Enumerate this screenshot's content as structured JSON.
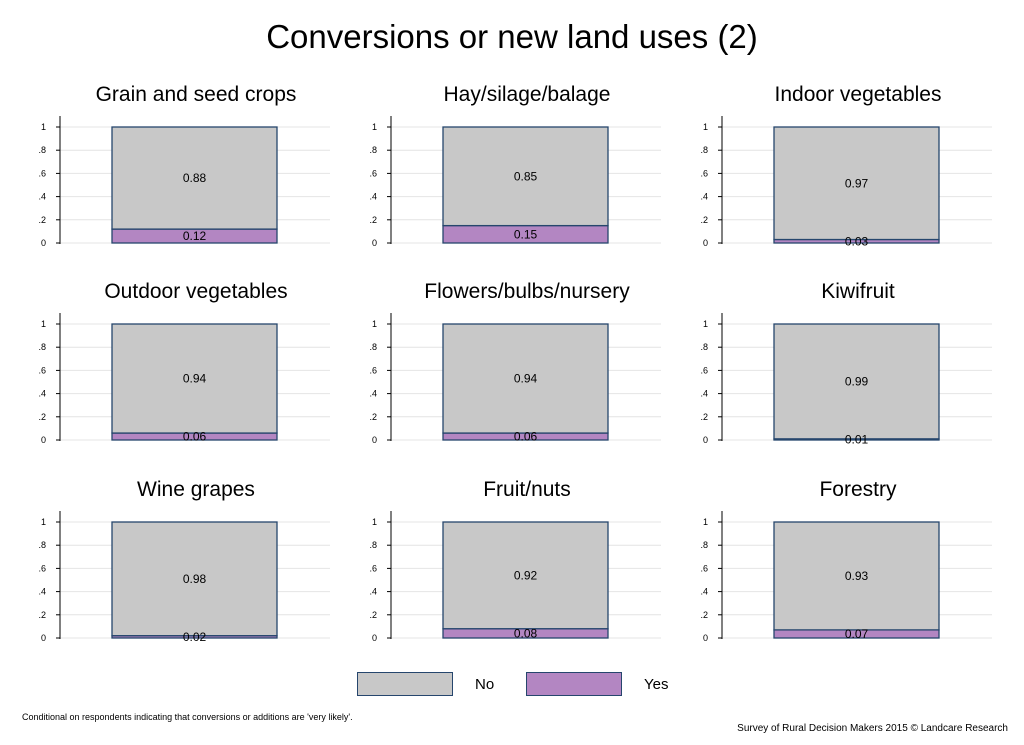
{
  "title": "Conversions or new land uses (2)",
  "colors": {
    "no": "#c8c8c8",
    "yes": "#b386c2",
    "edge": "#26466d",
    "grid": "#e4e4e4"
  },
  "legend": {
    "no_label": "No",
    "yes_label": "Yes"
  },
  "footnote": "Conditional on respondents indicating that conversions or additions are 'very likely'.",
  "credit": "Survey of Rural Decision Makers 2015 © Landcare Research",
  "chart_data": [
    {
      "type": "bar",
      "title": "Grain and seed crops",
      "series": [
        {
          "name": "No",
          "value": 0.88,
          "label": "0.88"
        },
        {
          "name": "Yes",
          "value": 0.12,
          "label": "0.12"
        }
      ],
      "ylim": [
        0,
        1
      ],
      "yticks": [
        "0",
        ".2",
        ".4",
        ".6",
        ".8",
        "1"
      ],
      "stacked": true,
      "grid": true
    },
    {
      "type": "bar",
      "title": "Hay/silage/balage",
      "series": [
        {
          "name": "No",
          "value": 0.85,
          "label": "0.85"
        },
        {
          "name": "Yes",
          "value": 0.15,
          "label": "0.15"
        }
      ],
      "ylim": [
        0,
        1
      ],
      "yticks": [
        "0",
        ".2",
        ".4",
        ".6",
        ".8",
        "1"
      ],
      "stacked": true,
      "grid": true
    },
    {
      "type": "bar",
      "title": "Indoor vegetables",
      "series": [
        {
          "name": "No",
          "value": 0.97,
          "label": "0.97"
        },
        {
          "name": "Yes",
          "value": 0.03,
          "label": "0.03"
        }
      ],
      "ylim": [
        0,
        1
      ],
      "yticks": [
        "0",
        ".2",
        ".4",
        ".6",
        ".8",
        "1"
      ],
      "stacked": true,
      "grid": true
    },
    {
      "type": "bar",
      "title": "Outdoor vegetables",
      "series": [
        {
          "name": "No",
          "value": 0.94,
          "label": "0.94"
        },
        {
          "name": "Yes",
          "value": 0.06,
          "label": "0.06"
        }
      ],
      "ylim": [
        0,
        1
      ],
      "yticks": [
        "0",
        ".2",
        ".4",
        ".6",
        ".8",
        "1"
      ],
      "stacked": true,
      "grid": true
    },
    {
      "type": "bar",
      "title": "Flowers/bulbs/nursery",
      "series": [
        {
          "name": "No",
          "value": 0.94,
          "label": "0.94"
        },
        {
          "name": "Yes",
          "value": 0.06,
          "label": "0.06"
        }
      ],
      "ylim": [
        0,
        1
      ],
      "yticks": [
        "0",
        ".2",
        ".4",
        ".6",
        ".8",
        "1"
      ],
      "stacked": true,
      "grid": true
    },
    {
      "type": "bar",
      "title": "Kiwifruit",
      "series": [
        {
          "name": "No",
          "value": 0.99,
          "label": "0.99"
        },
        {
          "name": "Yes",
          "value": 0.01,
          "label": "0.01"
        }
      ],
      "ylim": [
        0,
        1
      ],
      "yticks": [
        "0",
        ".2",
        ".4",
        ".6",
        ".8",
        "1"
      ],
      "stacked": true,
      "grid": true
    },
    {
      "type": "bar",
      "title": "Wine grapes",
      "series": [
        {
          "name": "No",
          "value": 0.98,
          "label": "0.98"
        },
        {
          "name": "Yes",
          "value": 0.02,
          "label": "0.02"
        }
      ],
      "ylim": [
        0,
        1
      ],
      "yticks": [
        "0",
        ".2",
        ".4",
        ".6",
        ".8",
        "1"
      ],
      "stacked": true,
      "grid": true
    },
    {
      "type": "bar",
      "title": "Fruit/nuts",
      "series": [
        {
          "name": "No",
          "value": 0.92,
          "label": "0.92"
        },
        {
          "name": "Yes",
          "value": 0.08,
          "label": "0.08"
        }
      ],
      "ylim": [
        0,
        1
      ],
      "yticks": [
        "0",
        ".2",
        ".4",
        ".6",
        ".8",
        "1"
      ],
      "stacked": true,
      "grid": true
    },
    {
      "type": "bar",
      "title": "Forestry",
      "series": [
        {
          "name": "No",
          "value": 0.93,
          "label": "0.93"
        },
        {
          "name": "Yes",
          "value": 0.07,
          "label": "0.07"
        }
      ],
      "ylim": [
        0,
        1
      ],
      "yticks": [
        "0",
        ".2",
        ".4",
        ".6",
        ".8",
        "1"
      ],
      "stacked": true,
      "grid": true
    }
  ]
}
